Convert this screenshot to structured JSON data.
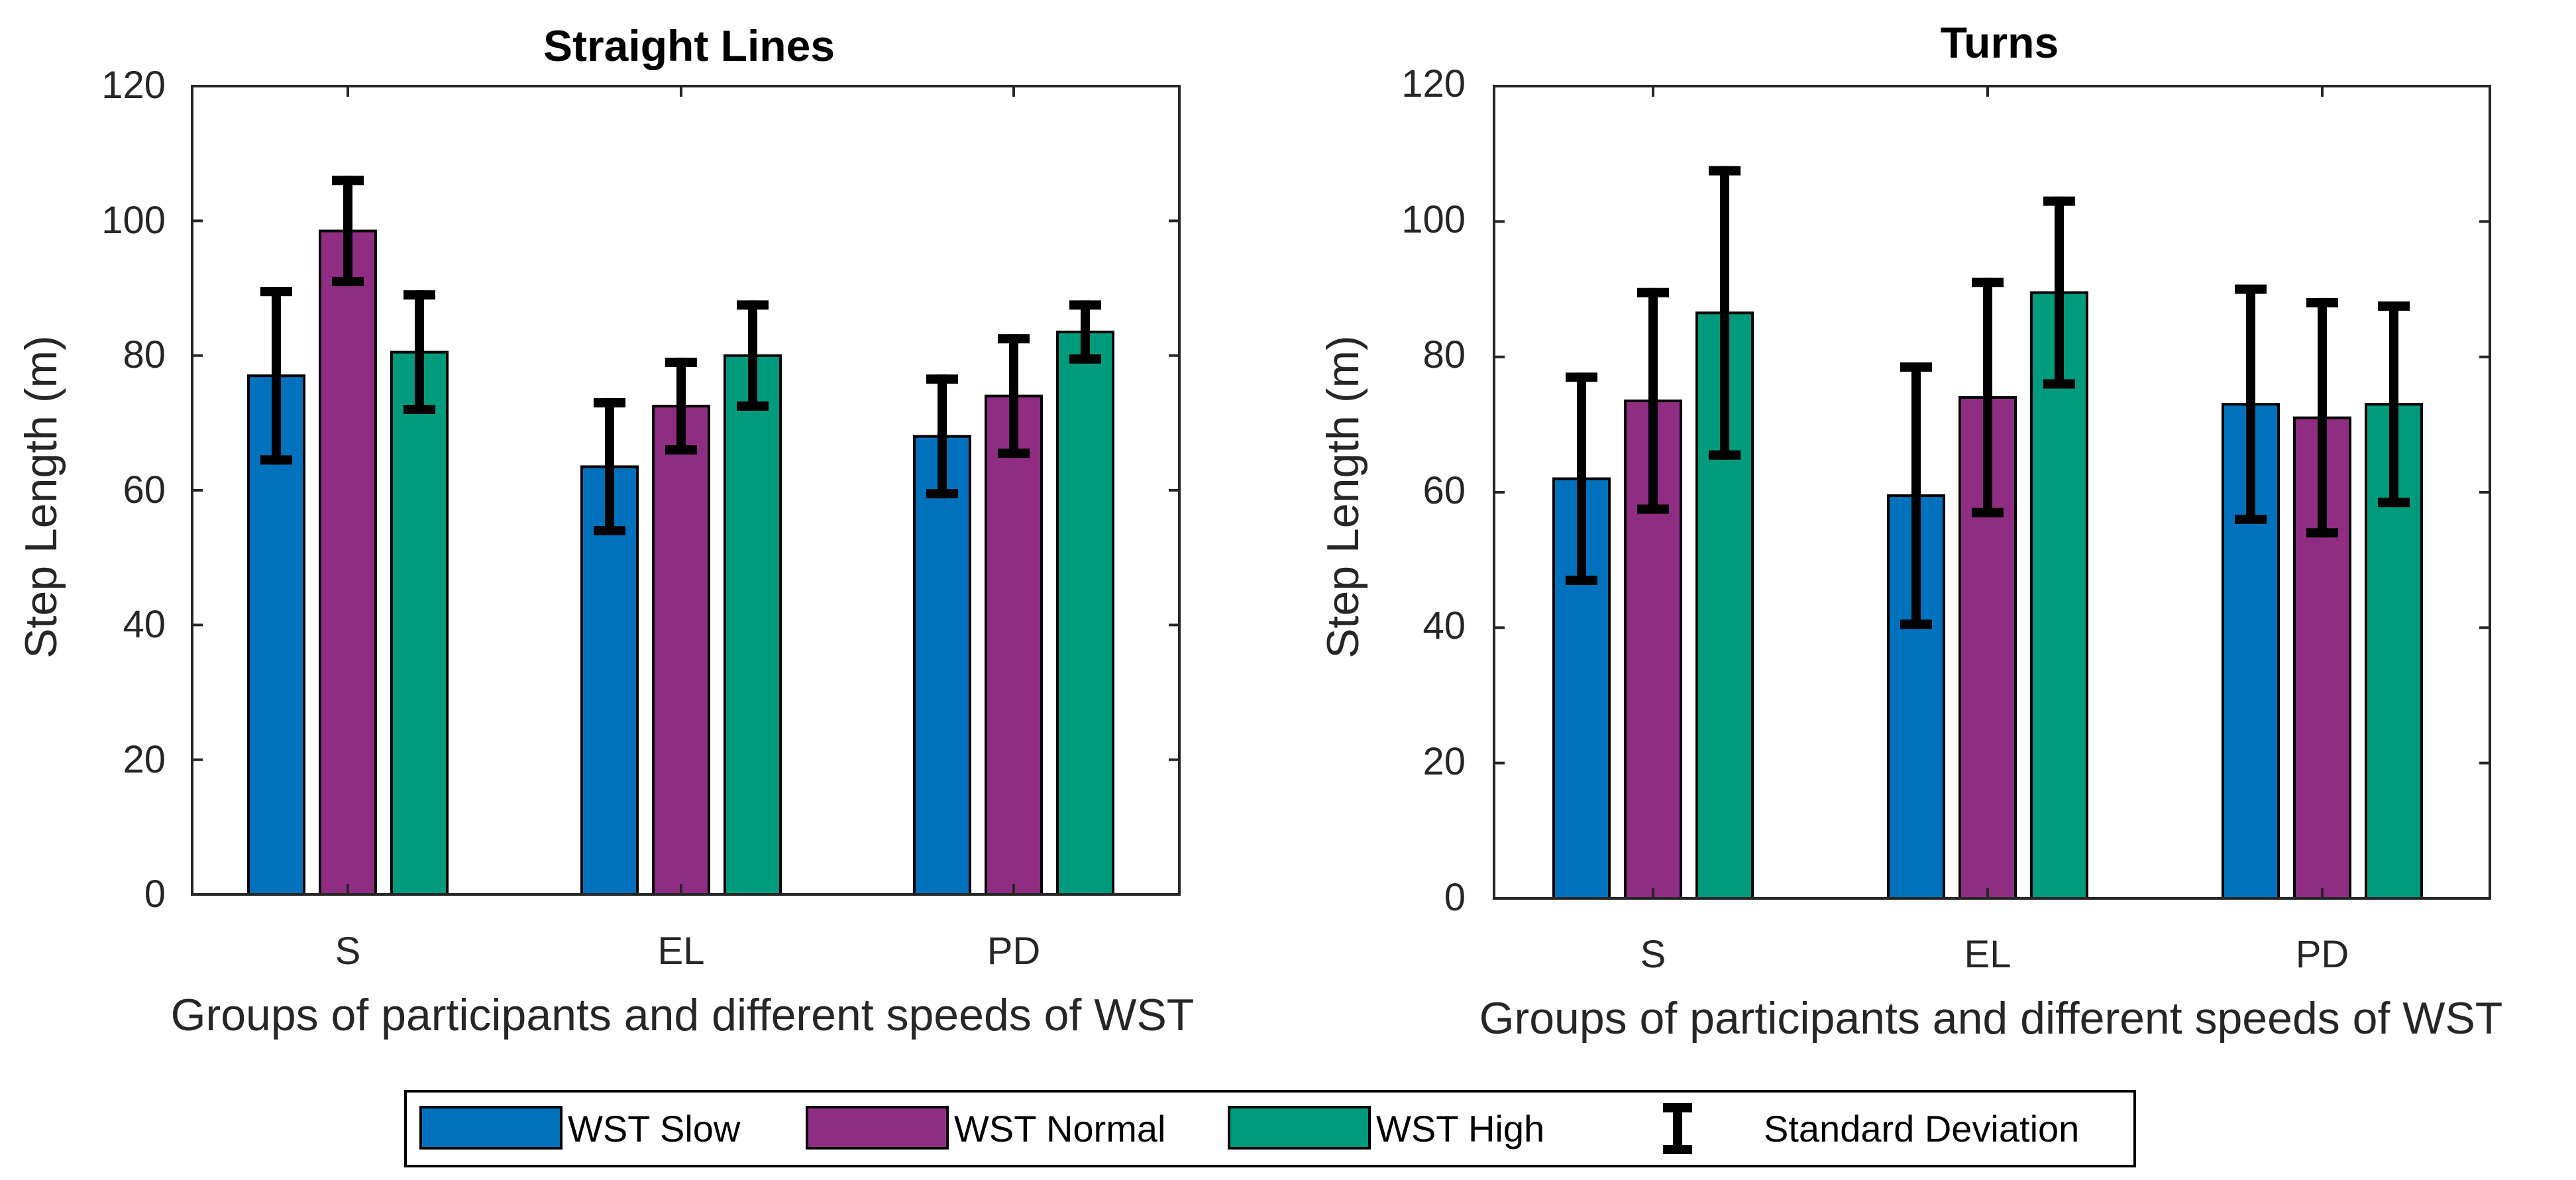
{
  "chart_data": [
    {
      "type": "bar",
      "title": "Straight Lines",
      "xlabel": "Groups of participants and different speeds of WST",
      "ylabel": "Step Length (m)",
      "categories": [
        "S",
        "EL",
        "PD"
      ],
      "ylim": [
        0,
        120
      ],
      "yticks": [
        "0",
        "20",
        "40",
        "60",
        "80",
        "100",
        "120"
      ],
      "series": [
        {
          "name": "WST Slow",
          "values": [
            77,
            63.5,
            68
          ],
          "errors": [
            12.5,
            9.5,
            8.5
          ]
        },
        {
          "name": "WST Normal",
          "values": [
            98.5,
            72.5,
            74
          ],
          "errors": [
            7.5,
            6.5,
            8.5
          ]
        },
        {
          "name": "WST High",
          "values": [
            80.5,
            80,
            83.5
          ],
          "errors": [
            8.5,
            7.5,
            4
          ]
        }
      ]
    },
    {
      "type": "bar",
      "title": "Turns",
      "xlabel": "Groups of participants and different speeds of WST",
      "ylabel": "Step Length (m)",
      "categories": [
        "S",
        "EL",
        "PD"
      ],
      "ylim": [
        0,
        120
      ],
      "yticks": [
        "0",
        "20",
        "40",
        "60",
        "80",
        "100",
        "120"
      ],
      "series": [
        {
          "name": "WST Slow",
          "values": [
            62,
            59.5,
            73
          ],
          "errors": [
            15,
            19,
            17
          ]
        },
        {
          "name": "WST Normal",
          "values": [
            73.5,
            74,
            71
          ],
          "errors": [
            16,
            17,
            17
          ]
        },
        {
          "name": "WST High",
          "values": [
            86.5,
            89.5,
            73
          ],
          "errors": [
            21,
            13.5,
            14.5
          ]
        }
      ]
    }
  ],
  "legend": {
    "items": [
      {
        "label": "WST Slow",
        "color": "#0072BD"
      },
      {
        "label": "WST Normal",
        "color": "#8F2D83"
      },
      {
        "label": "WST High",
        "color": "#009A7D"
      }
    ],
    "errorbar_label": "Standard Deviation"
  },
  "colors": [
    "#0072BD",
    "#8F2D83",
    "#009A7D"
  ]
}
